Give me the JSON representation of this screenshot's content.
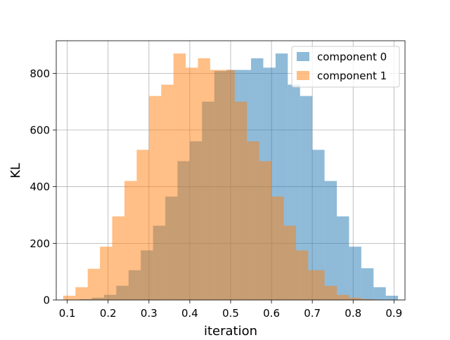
{
  "chart_data": {
    "type": "histogram",
    "title": "",
    "xlabel": "iteration",
    "ylabel": "KL",
    "xlim": [
      0.073,
      0.927
    ],
    "ylim": [
      0,
      915
    ],
    "grid": true,
    "legend_position": "upper-right",
    "xticks": [
      "0.1",
      "0.2",
      "0.3",
      "0.4",
      "0.5",
      "0.6",
      "0.7",
      "0.8",
      "0.9"
    ],
    "xtick_values": [
      0.1,
      0.2,
      0.3,
      0.4,
      0.5,
      0.6,
      0.7,
      0.8,
      0.9
    ],
    "yticks": [
      "0",
      "200",
      "400",
      "600",
      "800"
    ],
    "ytick_values": [
      0,
      200,
      400,
      600,
      800
    ],
    "series": [
      {
        "name": "component 0",
        "color": "#1f77b4",
        "opacity": 0.5,
        "bin_edges": [
          0.13,
          0.16,
          0.19,
          0.22,
          0.25,
          0.28,
          0.31,
          0.34,
          0.37,
          0.4,
          0.43,
          0.46,
          0.49,
          0.52,
          0.55,
          0.58,
          0.61,
          0.64,
          0.67,
          0.7,
          0.73,
          0.76,
          0.79,
          0.82,
          0.85,
          0.88,
          0.91
        ],
        "counts": [
          3,
          8,
          18,
          50,
          105,
          175,
          262,
          365,
          490,
          560,
          700,
          808,
          812,
          812,
          853,
          820,
          870,
          760,
          720,
          530,
          420,
          295,
          188,
          112,
          45,
          15
        ]
      },
      {
        "name": "component 1",
        "color": "#ff7f0e",
        "opacity": 0.5,
        "bin_edges": [
          0.09,
          0.12,
          0.15,
          0.18,
          0.21,
          0.24,
          0.27,
          0.3,
          0.33,
          0.36,
          0.39,
          0.42,
          0.45,
          0.48,
          0.51,
          0.54,
          0.57,
          0.6,
          0.63,
          0.66,
          0.69,
          0.73,
          0.76,
          0.79,
          0.82,
          0.85,
          0.88
        ],
        "counts": [
          15,
          45,
          110,
          188,
          295,
          420,
          530,
          720,
          760,
          870,
          820,
          853,
          812,
          812,
          700,
          560,
          490,
          365,
          262,
          175,
          105,
          50,
          18,
          8,
          3,
          1
        ]
      }
    ]
  }
}
